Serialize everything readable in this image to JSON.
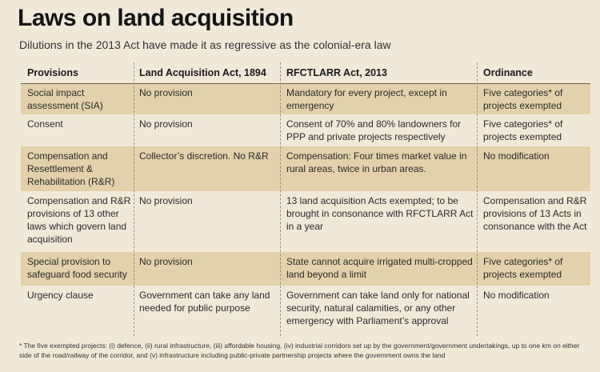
{
  "title": "Laws on land acquisition",
  "subtitle": "Dilutions in the 2013 Act have made it as regressive as the colonial-era law",
  "table": {
    "headers": [
      "Provisions",
      "Land Acquisition Act, 1894",
      "RFCTLARR Act, 2013",
      "Ordinance"
    ],
    "rows": [
      [
        "Social impact assessment (SIA)",
        "No provision",
        "Mandatory for every project, except in emergency",
        "Five categories* of projects exempted"
      ],
      [
        "Consent",
        "No provision",
        "Consent of 70% and 80% landowners for PPP and private projects respectively",
        "Five categories* of projects exempted"
      ],
      [
        "Compensation and Resettlement & Rehabilitation (R&R)",
        "Collector’s discretion. No R&R",
        "Compensation: Four times market value in rural areas, twice in urban areas.",
        "No modification"
      ],
      [
        "Compensation and R&R provisions of 13 other laws which govern land acquisition",
        "No provision",
        "13 land acquisition Acts exempted; to be brought in consonance with RFCTLARR Act in a year",
        "Compensation and R&R provisions of 13 Acts in consonance with the Act"
      ],
      [
        "Special provision to safeguard food security",
        "No provision",
        "State cannot acquire irrigated multi-cropped land beyond a limit",
        "Five categories* of projects exempted"
      ],
      [
        "Urgency clause",
        "Government can take any land needed for public purpose",
        "Government can take land only for national security, natural calamities, or any other emergency with Parliament’s approval",
        "No modification"
      ]
    ]
  },
  "footnote": "* The five exempted projects: (i) defence, (ii) rural infrastructure, (iii) affordable housing, (iv) industrial corridors set up by the government/government undertakings, up to one km on either side of the road/railway of the corridor, and (v) infrastructure including public-private partnership projects where the government owns the land"
}
